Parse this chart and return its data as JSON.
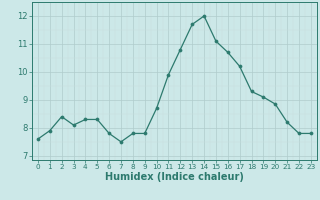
{
  "x": [
    0,
    1,
    2,
    3,
    4,
    5,
    6,
    7,
    8,
    9,
    10,
    11,
    12,
    13,
    14,
    15,
    16,
    17,
    18,
    19,
    20,
    21,
    22,
    23
  ],
  "y": [
    7.6,
    7.9,
    8.4,
    8.1,
    8.3,
    8.3,
    7.8,
    7.5,
    7.8,
    7.8,
    8.7,
    9.9,
    10.8,
    11.7,
    12.0,
    11.1,
    10.7,
    10.2,
    9.3,
    9.1,
    8.85,
    8.2,
    7.8,
    7.8
  ],
  "line_color": "#2d7a6e",
  "marker_color": "#2d7a6e",
  "bg_color": "#cce8e8",
  "xlabel": "Humidex (Indice chaleur)",
  "ylim": [
    6.85,
    12.5
  ],
  "yticks": [
    7,
    8,
    9,
    10,
    11,
    12
  ],
  "xlim": [
    -0.5,
    23.5
  ],
  "xticks": [
    0,
    1,
    2,
    3,
    4,
    5,
    6,
    7,
    8,
    9,
    10,
    11,
    12,
    13,
    14,
    15,
    16,
    17,
    18,
    19,
    20,
    21,
    22,
    23
  ],
  "axis_color": "#2d7a6e",
  "label_fontsize": 7.0,
  "tick_fontsize": 6.0,
  "grid_major_color": "#b0cccc",
  "grid_minor_color": "#c8dede"
}
